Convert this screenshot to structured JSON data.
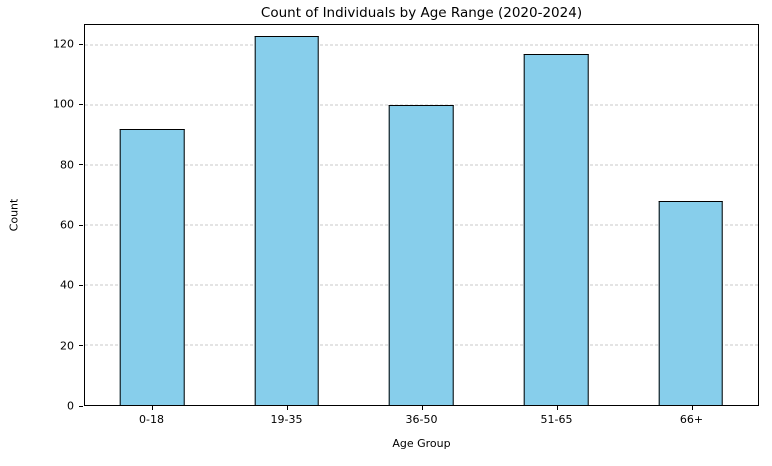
{
  "chart_data": {
    "type": "bar",
    "title": "Count of Individuals by Age Range (2020-2024)",
    "xlabel": "Age Group",
    "ylabel": "Count",
    "categories": [
      "0-18",
      "19-35",
      "36-50",
      "51-65",
      "66+"
    ],
    "values": [
      92,
      123,
      100,
      117,
      68
    ],
    "yticks": [
      0,
      20,
      40,
      60,
      80,
      100,
      120
    ],
    "ylim": [
      0,
      126.65
    ],
    "bar_color": "#87CEEB",
    "bar_edge_color": "#000000",
    "gridline_color": "#c8c8c8",
    "grid": "horizontal-dashed",
    "legend": "none",
    "background": "#ffffff"
  }
}
